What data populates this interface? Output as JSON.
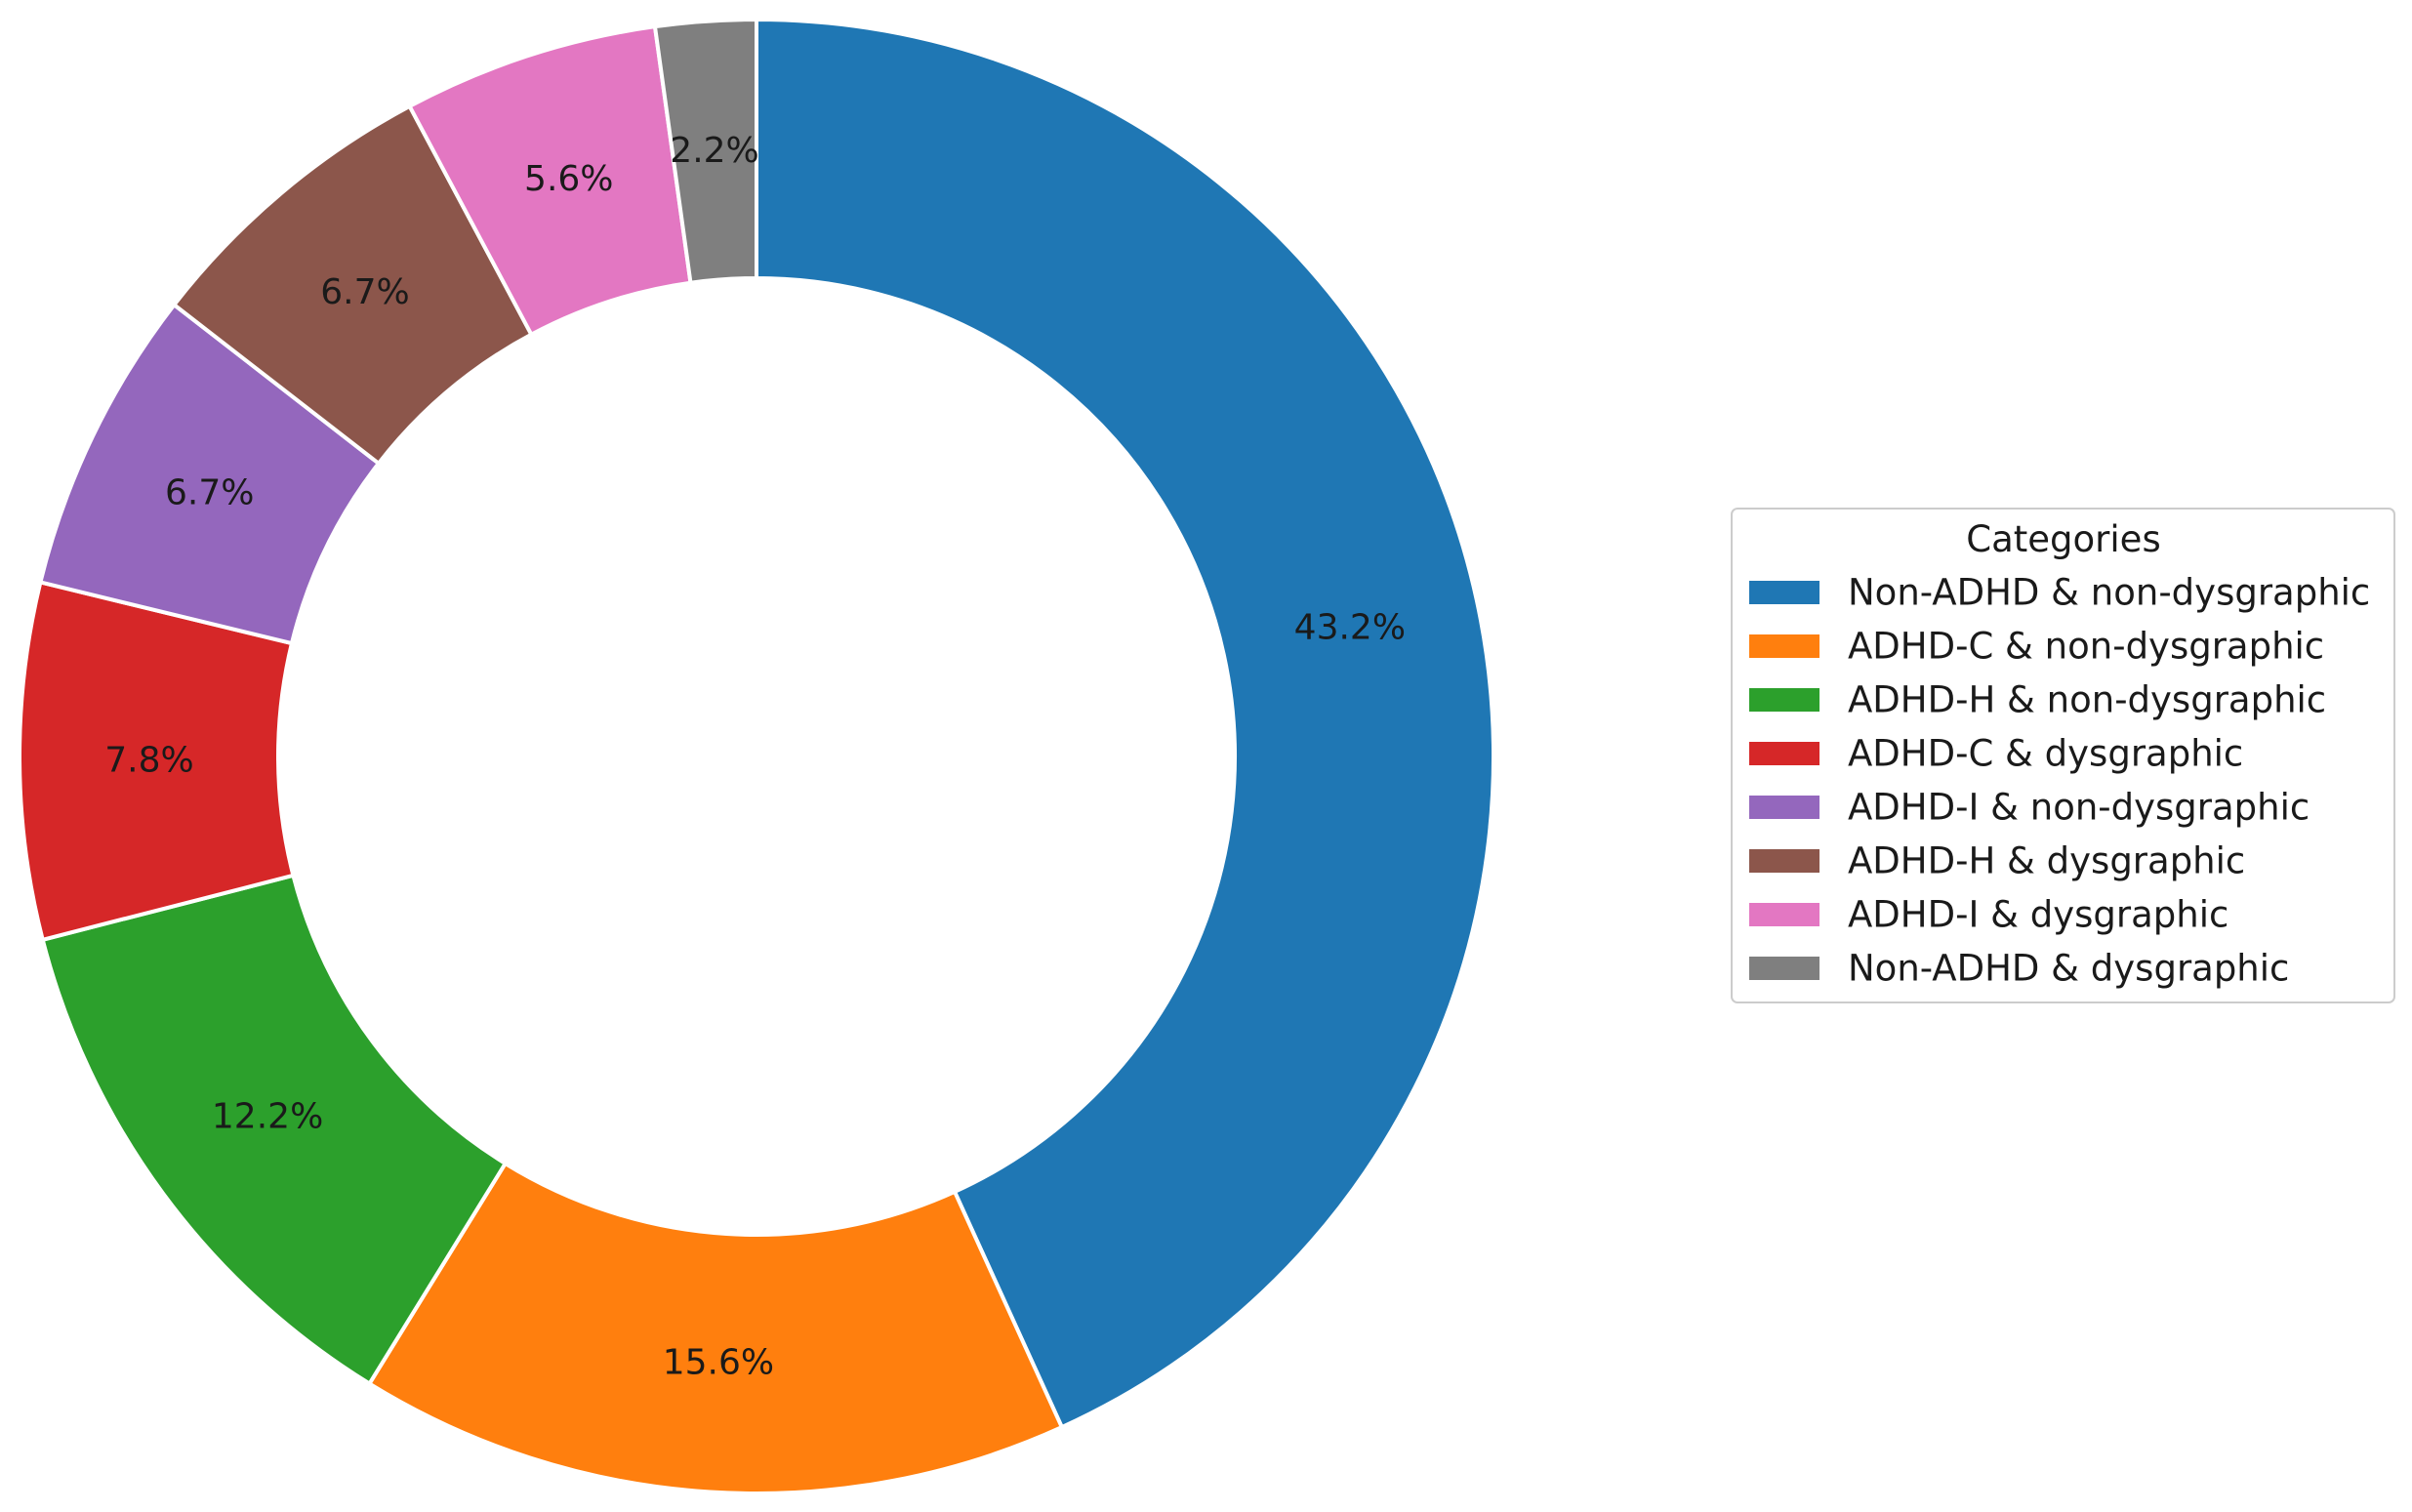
{
  "chart_data": {
    "type": "pie",
    "variant": "donut",
    "title": "",
    "legend": {
      "title": "Categories",
      "placement": "right"
    },
    "start_angle_deg": 90,
    "direction": "clockwise",
    "categories": [
      "Non-ADHD & non-dysgraphic",
      "ADHD-C & non-dysgraphic",
      "ADHD-H & non-dysgraphic",
      "ADHD-C & dysgraphic",
      "ADHD-I & non-dysgraphic",
      "ADHD-H & dysgraphic",
      "ADHD-I & dysgraphic",
      "Non-ADHD & dysgraphic"
    ],
    "values": [
      43.2,
      15.6,
      12.2,
      7.8,
      6.7,
      6.7,
      5.6,
      2.2
    ],
    "labels": [
      "43.2%",
      "15.6%",
      "12.2%",
      "7.8%",
      "6.7%",
      "6.7%",
      "5.6%",
      "2.2%"
    ],
    "colors": [
      "#1f77b4",
      "#ff7f0e",
      "#2ca02c",
      "#d62728",
      "#9467bd",
      "#8c564b",
      "#e377c2",
      "#7f7f7f"
    ]
  }
}
